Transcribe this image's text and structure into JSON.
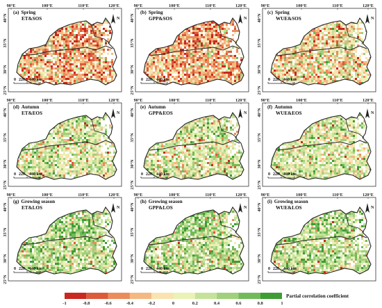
{
  "panels": [
    {
      "tag": "(a)",
      "line1": "Spring",
      "line2": "ET&SOS",
      "tone": "neg"
    },
    {
      "tag": "(b)",
      "line1": "Spring",
      "line2": "GPP&SOS",
      "tone": "neg"
    },
    {
      "tag": "(c)",
      "line1": "Spring",
      "line2": "WUE&SOS",
      "tone": "mixneg"
    },
    {
      "tag": "(d)",
      "line1": "Autumn",
      "line2": "ET&EOS",
      "tone": "mixpos"
    },
    {
      "tag": "(e)",
      "line1": "Autumn",
      "line2": "GPP&EOS",
      "tone": "mixpos"
    },
    {
      "tag": "(f)",
      "line1": "Autumn",
      "line2": "WUE&EOS",
      "tone": "mixpos"
    },
    {
      "tag": "(g)",
      "line1": "Growing season",
      "line2": "ET&LOS",
      "tone": "pos"
    },
    {
      "tag": "(h)",
      "line1": "Growing season",
      "line2": "GPP&LOS",
      "tone": "pos"
    },
    {
      "tag": "(i)",
      "line1": "Growing season",
      "line2": "WUE&LOS",
      "tone": "pos"
    }
  ],
  "lon_ticks": [
    "90°E",
    "100°E",
    "110°E",
    "120°E"
  ],
  "lat_ticks": [
    "40°N",
    "35°N",
    "30°N",
    "25°N"
  ],
  "scale_bar": {
    "zero": "0",
    "mid": "220",
    "end": "440 km"
  },
  "north_label": "N",
  "legend": {
    "title": "Partial correlation coefficient",
    "ticks": [
      "-1",
      "-0.8",
      "-0.6",
      "-0.4",
      "-0.2",
      "0",
      "0.2",
      "0.4",
      "0.6",
      "0.8",
      "1"
    ],
    "colors": [
      "#c8281f",
      "#dc5a3a",
      "#ea8c5c",
      "#f4b882",
      "#f9e3b0",
      "#eaf2b6",
      "#c6e29a",
      "#a0d07c",
      "#72b95a",
      "#3f9b36"
    ]
  },
  "colors": {
    "nodata": "#ffffff",
    "border": "#222222",
    "frame": "#333333"
  }
}
